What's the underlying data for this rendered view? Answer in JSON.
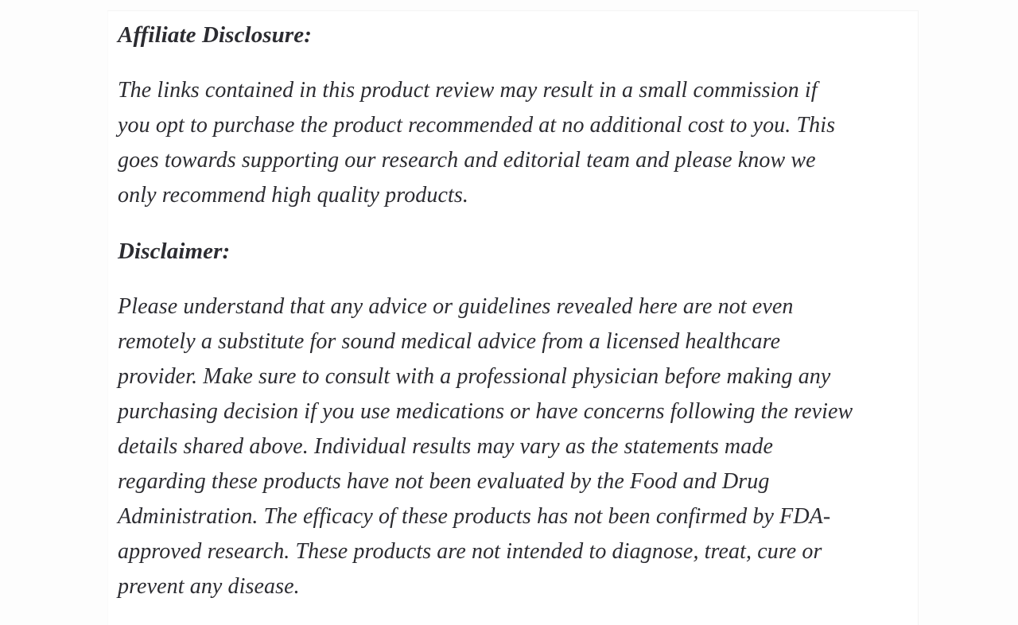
{
  "page": {
    "background_color": "#fdfdfd",
    "card_color": "#ffffff",
    "text_color": "#2c2c31"
  },
  "article": {
    "affiliate": {
      "heading": "Affiliate Disclosure:",
      "paragraph": "The links contained in this product review may result in a small commission if\nyou opt to purchase the product recommended at no additional cost to you. This\ngoes towards supporting our research and editorial team and please know we\nonly recommend high quality products."
    },
    "disclaimer": {
      "heading": "Disclaimer:",
      "paragraph": "Please understand that any advice or guidelines revealed here are not even\nremotely a substitute for sound medical advice from a licensed healthcare\nprovider. Make sure to consult with a professional physician before making any\npurchasing decision if you use medications or have concerns following the review\ndetails shared above. Individual results may vary as the statements made\nregarding these products have not been evaluated by the Food and Drug\nAdministration. The efficacy of these products has not been confirmed by FDA-\napproved research. These products are not intended to diagnose, treat, cure or\nprevent any disease."
    }
  }
}
